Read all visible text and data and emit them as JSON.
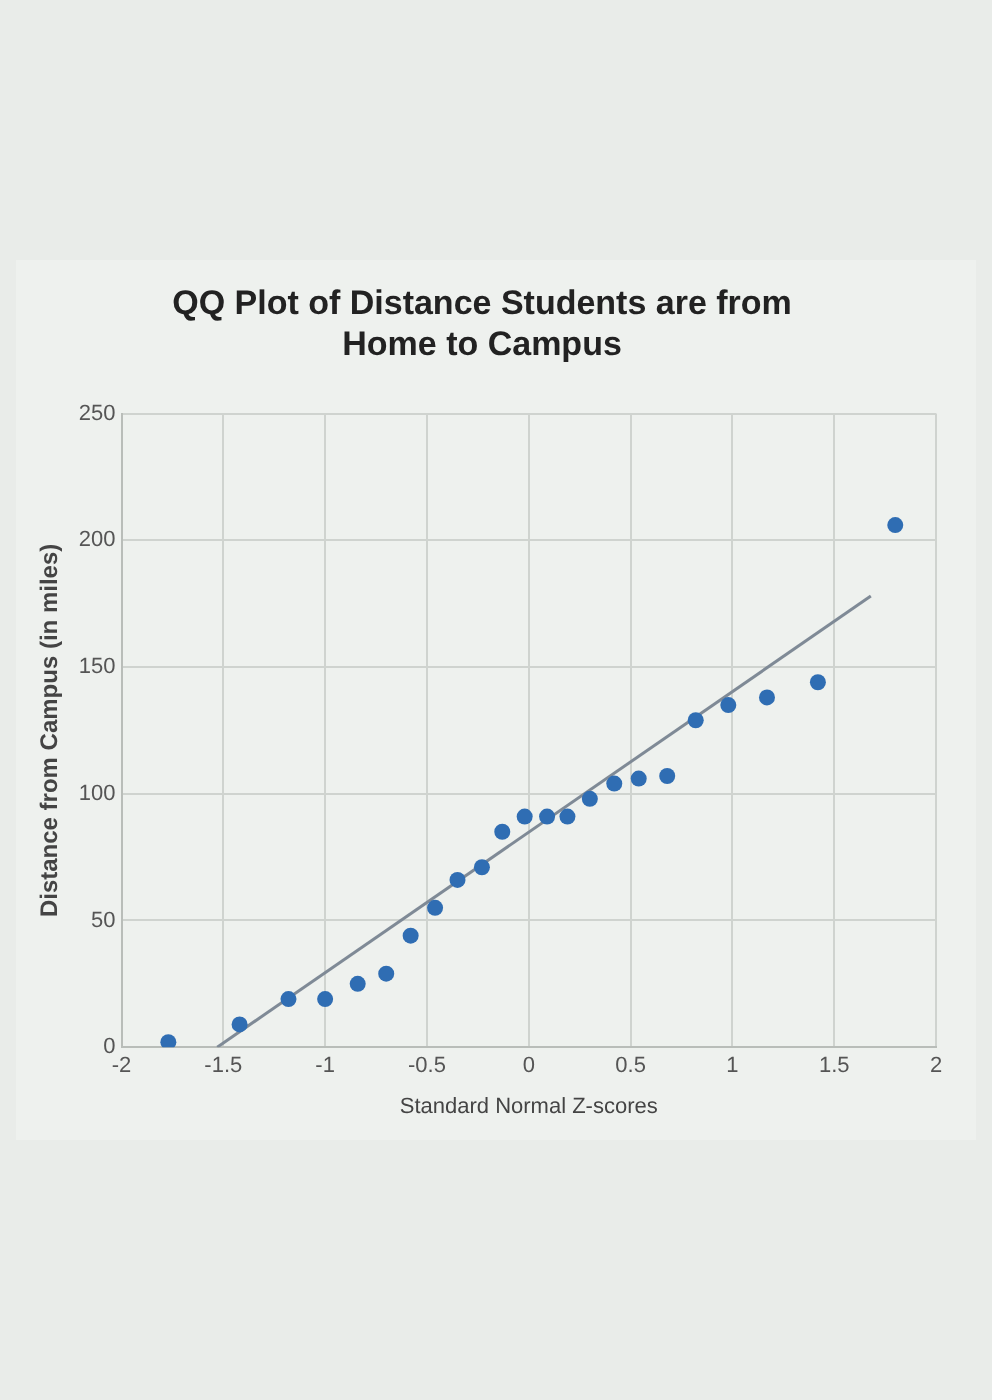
{
  "chart_data": {
    "type": "scatter",
    "title": "QQ Plot of Distance Students are from Home to Campus",
    "xlabel": "Standard Normal Z-scores",
    "ylabel": "Distance from Campus (in miles)",
    "xlim": [
      -2,
      2
    ],
    "xticks": [
      -2,
      -1.5,
      -1,
      -0.5,
      0,
      0.5,
      1,
      1.5,
      2
    ],
    "ylim": [
      0,
      250
    ],
    "yticks": [
      0,
      50,
      100,
      150,
      200,
      250
    ],
    "grid": true,
    "series": [
      {
        "color": "#2f6db3",
        "marker": "circle",
        "x": [
          -1.77,
          -1.42,
          -1.18,
          -1.0,
          -0.84,
          -0.7,
          -0.58,
          -0.46,
          -0.35,
          -0.23,
          -0.13,
          -0.02,
          0.09,
          0.19,
          0.3,
          0.42,
          0.54,
          0.68,
          0.82,
          0.98,
          1.17,
          1.42,
          1.8
        ],
        "values": [
          2,
          9,
          19,
          19,
          25,
          29,
          44,
          55,
          66,
          71,
          85,
          91,
          91,
          91,
          98,
          104,
          106,
          107,
          129,
          135,
          138,
          144,
          206
        ]
      },
      {
        "type": "line",
        "color": "#7f8a96",
        "marker": "none",
        "x": [
          -1.53,
          1.68
        ],
        "values": [
          0,
          178
        ]
      }
    ]
  }
}
